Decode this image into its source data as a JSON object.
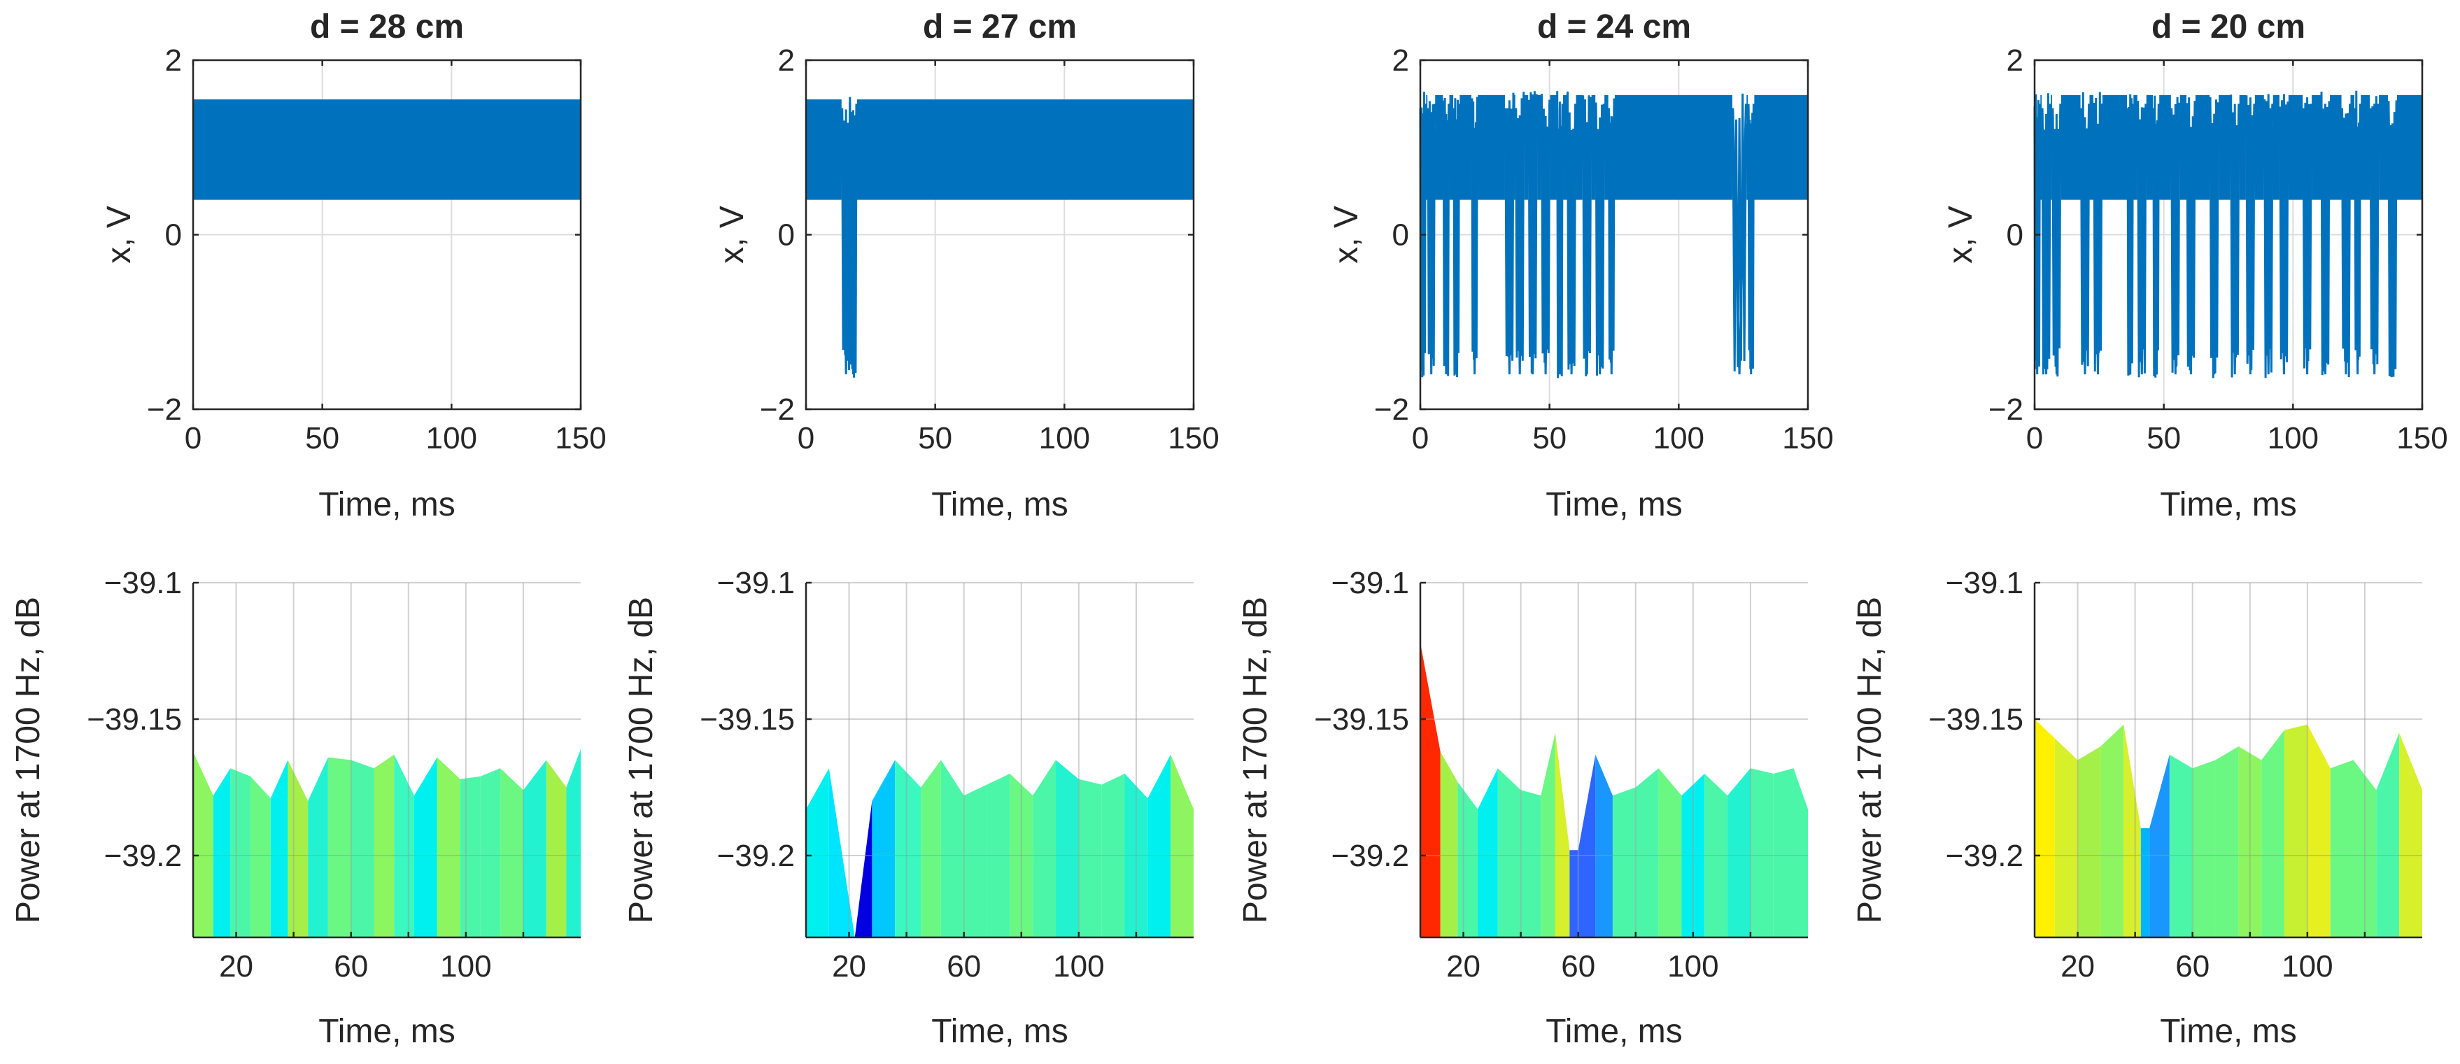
{
  "chart_data": [
    {
      "type": "line",
      "title": "d = 28 cm",
      "xlabel": "Time, ms",
      "ylabel": "x, V",
      "xlim": [
        0,
        150
      ],
      "ylim": [
        -2,
        2
      ],
      "xticks": [
        "0",
        "50",
        "100",
        "150"
      ],
      "yticks": [
        "2",
        "0",
        "-2"
      ],
      "grid": true,
      "color": "#0072BD",
      "band_low": 0.4,
      "band_high": 1.55,
      "drops": []
    },
    {
      "type": "line",
      "title": "d = 27 cm",
      "xlabel": "Time, ms",
      "ylabel": "x, V",
      "xlim": [
        0,
        150
      ],
      "ylim": [
        -2,
        2
      ],
      "xticks": [
        "0",
        "50",
        "100",
        "150"
      ],
      "yticks": [
        "2",
        "0",
        "-2"
      ],
      "grid": true,
      "color": "#0072BD",
      "band_low": 0.4,
      "band_high": 1.55,
      "drops": [
        [
          14,
          17
        ],
        [
          17,
          19.5
        ]
      ]
    },
    {
      "type": "line",
      "title": "d = 24 cm",
      "xlabel": "Time, ms",
      "ylabel": "x, V",
      "xlim": [
        0,
        150
      ],
      "ylim": [
        -2,
        2
      ],
      "xticks": [
        "0",
        "50",
        "100",
        "150"
      ],
      "yticks": [
        "2",
        "0",
        "-2"
      ],
      "grid": true,
      "color": "#0072BD",
      "band_low": 0.4,
      "band_high": 1.6,
      "drops": [
        [
          0,
          2
        ],
        [
          3,
          5.5
        ],
        [
          9,
          11
        ],
        [
          13,
          15
        ],
        [
          20,
          22
        ],
        [
          33,
          36
        ],
        [
          37,
          40
        ],
        [
          42,
          45
        ],
        [
          47,
          50
        ],
        [
          53,
          55
        ],
        [
          57,
          60
        ],
        [
          63,
          66
        ],
        [
          68,
          71
        ],
        [
          73,
          75
        ],
        [
          121,
          126
        ],
        [
          127,
          129
        ]
      ]
    },
    {
      "type": "line",
      "title": "d = 20 cm",
      "xlabel": "Time, ms",
      "ylabel": "x, V",
      "xlim": [
        0,
        150
      ],
      "ylim": [
        -2,
        2
      ],
      "xticks": [
        "0",
        "50",
        "100",
        "150"
      ],
      "yticks": [
        "2",
        "0",
        "-2"
      ],
      "grid": true,
      "color": "#0072BD",
      "band_low": 0.4,
      "band_high": 1.6,
      "drops": [
        [
          0,
          2
        ],
        [
          3,
          6
        ],
        [
          7,
          10
        ],
        [
          18,
          21
        ],
        [
          23,
          26
        ],
        [
          36,
          38
        ],
        [
          40,
          43
        ],
        [
          46,
          48
        ],
        [
          53,
          56
        ],
        [
          59,
          62
        ],
        [
          68,
          71
        ],
        [
          76,
          79
        ],
        [
          82,
          85
        ],
        [
          89,
          92
        ],
        [
          95,
          98
        ],
        [
          104,
          107
        ],
        [
          111,
          114
        ],
        [
          119,
          122
        ],
        [
          124,
          126
        ],
        [
          130,
          133
        ],
        [
          137,
          140
        ]
      ]
    },
    {
      "type": "area",
      "xlabel": "Time, ms",
      "ylabel": "Power at 1700 Hz, dB",
      "xlim": [
        5,
        140
      ],
      "ylim": [
        -39.23,
        -39.1
      ],
      "xticks": [
        "20",
        "60",
        "100"
      ],
      "xtick_values": [
        20,
        60,
        100
      ],
      "yticks": [
        "-39.1",
        "-39.15",
        "-39.2"
      ],
      "ytick_values": [
        -39.1,
        -39.15,
        -39.2
      ],
      "grid": true,
      "x": [
        5,
        12,
        18,
        25,
        32,
        38,
        45,
        52,
        60,
        68,
        75,
        82,
        90,
        98,
        105,
        112,
        120,
        128,
        135,
        140
      ],
      "y": [
        -39.162,
        -39.178,
        -39.168,
        -39.171,
        -39.179,
        -39.165,
        -39.18,
        -39.164,
        -39.165,
        -39.168,
        -39.163,
        -39.178,
        -39.164,
        -39.172,
        -39.171,
        -39.168,
        -39.176,
        -39.165,
        -39.175,
        -39.161
      ],
      "fill_colors": [
        "#8DF55F",
        "#00F0F0",
        "#4CF6A9",
        "#6AF883",
        "#00F0F0",
        "#A5F048",
        "#22F2D0",
        "#6AF883",
        "#4CF6A9",
        "#8DF55F",
        "#3AF8C0",
        "#00F0F0",
        "#8DF55F",
        "#4CF6A9",
        "#4CF6A9",
        "#6AF883",
        "#22F2D0",
        "#A5F048",
        "#22F2D0"
      ]
    },
    {
      "type": "area",
      "xlabel": "Time, ms",
      "ylabel": "Power at 1700 Hz, dB",
      "xlim": [
        5,
        140
      ],
      "ylim": [
        -39.23,
        -39.1
      ],
      "xticks": [
        "20",
        "60",
        "100"
      ],
      "xtick_values": [
        20,
        60,
        100
      ],
      "yticks": [
        "-39.1",
        "-39.15",
        "-39.2"
      ],
      "ytick_values": [
        -39.1,
        -39.15,
        -39.2
      ],
      "grid": true,
      "x": [
        5,
        13,
        22,
        28,
        36,
        45,
        52,
        60,
        68,
        76,
        84,
        92,
        100,
        108,
        116,
        124,
        132,
        140
      ],
      "y": [
        -39.183,
        -39.168,
        -39.232,
        -39.18,
        -39.165,
        -39.175,
        -39.165,
        -39.178,
        -39.174,
        -39.17,
        -39.178,
        -39.165,
        -39.172,
        -39.174,
        -39.17,
        -39.179,
        -39.163,
        -39.183
      ],
      "fill_colors": [
        "#00F0F0",
        "#00E5FF",
        "#0000E0",
        "#00C8FF",
        "#3AF8C0",
        "#6AF883",
        "#4CF6A9",
        "#4CF6A9",
        "#4CF6A9",
        "#6AF883",
        "#4CF6A9",
        "#22F2D0",
        "#4CF6A9",
        "#4CF6A9",
        "#22F2D0",
        "#00F0F0",
        "#8DF55F"
      ]
    },
    {
      "type": "area",
      "xlabel": "Time, ms",
      "ylabel": "Power at 1700 Hz, dB",
      "xlim": [
        5,
        140
      ],
      "ylim": [
        -39.23,
        -39.1
      ],
      "xticks": [
        "20",
        "60",
        "100"
      ],
      "xtick_values": [
        20,
        60,
        100
      ],
      "yticks": [
        "-39.1",
        "-39.15",
        "-39.2"
      ],
      "ytick_values": [
        -39.1,
        -39.15,
        -39.2
      ],
      "grid": true,
      "x": [
        5,
        12,
        18,
        25,
        32,
        40,
        47,
        52,
        57,
        60,
        66,
        72,
        80,
        88,
        96,
        104,
        112,
        120,
        128,
        135,
        140
      ],
      "y": [
        -39.122,
        -39.162,
        -39.173,
        -39.183,
        -39.168,
        -39.176,
        -39.178,
        -39.155,
        -39.198,
        -39.198,
        -39.163,
        -39.178,
        -39.175,
        -39.168,
        -39.178,
        -39.17,
        -39.178,
        -39.168,
        -39.17,
        -39.168,
        -39.183
      ],
      "fill_colors": [
        "#FF2800",
        "#A5F048",
        "#4CF6A9",
        "#00F0F0",
        "#4CF6A9",
        "#4CF6A9",
        "#6AF883",
        "#D6F02B",
        "#2E64FF",
        "#2E64FF",
        "#1A96FF",
        "#4CF6A9",
        "#4CF6A9",
        "#6AF883",
        "#00F0F0",
        "#4CF6A9",
        "#22F2D0",
        "#4CF6A9",
        "#4CF6A9",
        "#4CF6A9"
      ]
    },
    {
      "type": "area",
      "xlabel": "Time, ms",
      "ylabel": "Power at 1700 Hz, dB",
      "xlim": [
        5,
        140
      ],
      "ylim": [
        -39.23,
        -39.1
      ],
      "xticks": [
        "20",
        "60",
        "100"
      ],
      "xtick_values": [
        20,
        60,
        100
      ],
      "yticks": [
        "-39.1",
        "-39.15",
        "-39.2"
      ],
      "ytick_values": [
        -39.1,
        -39.15,
        -39.2
      ],
      "grid": true,
      "x": [
        5,
        12,
        20,
        28,
        36,
        42,
        45,
        52,
        60,
        68,
        76,
        84,
        92,
        100,
        108,
        116,
        124,
        132,
        140
      ],
      "y": [
        -39.15,
        -39.157,
        -39.165,
        -39.16,
        -39.152,
        -39.19,
        -39.19,
        -39.163,
        -39.168,
        -39.165,
        -39.16,
        -39.165,
        -39.154,
        -39.152,
        -39.168,
        -39.165,
        -39.176,
        -39.155,
        -39.176
      ],
      "fill_colors": [
        "#FFF000",
        "#D6F02B",
        "#A5F048",
        "#8DF55F",
        "#D6F02B",
        "#00B4FF",
        "#1A96FF",
        "#4CF6A9",
        "#6AF883",
        "#6AF883",
        "#8DF55F",
        "#6AF883",
        "#C8F032",
        "#E6F020",
        "#6AF883",
        "#6AF883",
        "#4CF6A9",
        "#D6F02B"
      ]
    }
  ]
}
